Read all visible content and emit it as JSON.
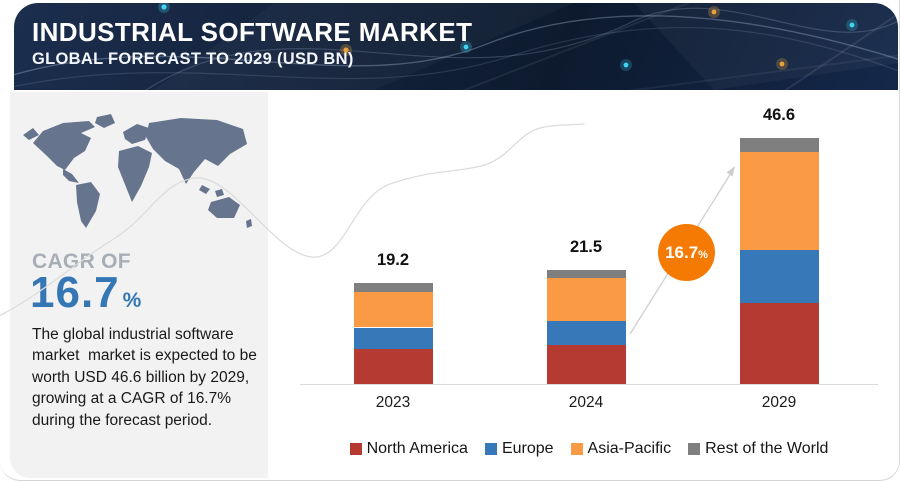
{
  "header": {
    "title": "INDUSTRIAL SOFTWARE MARKET",
    "subtitle": "GLOBAL FORECAST TO 2029 (USD BN)"
  },
  "sidebar": {
    "cagr_label": "CAGR OF",
    "cagr_value": "16.7",
    "cagr_unit": "%",
    "description": "The global industrial software market  market is expected to be worth USD 46.6 billion by 2029, growing at a CAGR of 16.7% during the forecast period."
  },
  "badge": {
    "value": "16.7",
    "unit": "%"
  },
  "chart_data": {
    "type": "bar",
    "stacked": true,
    "title": "Industrial Software Market, Global Forecast to 2029 (USD BN)",
    "categories": [
      "2023",
      "2024",
      "2029"
    ],
    "series": [
      {
        "name": "North America",
        "color": "#b53a31",
        "values": [
          6.6,
          7.3,
          15.4
        ]
      },
      {
        "name": "Europe",
        "color": "#3779b8",
        "values": [
          4.1,
          4.6,
          10.0
        ]
      },
      {
        "name": "Asia-Pacific",
        "color": "#fb9a45",
        "values": [
          6.8,
          8.1,
          18.6
        ]
      },
      {
        "name": "Rest of the World",
        "color": "#7f7f7f",
        "values": [
          1.7,
          1.5,
          2.6
        ]
      }
    ],
    "totals": [
      "19.2",
      "21.5",
      "46.6"
    ],
    "cagr_annotation": "16.7%",
    "legend_position": "bottom",
    "grid": false,
    "ylim": [
      0,
      50
    ]
  },
  "colors": {
    "accent_blue": "#3577b4",
    "badge_orange": "#f57a03",
    "header_navy": "#14233c",
    "sidebar_bg": "#f2f2f3",
    "map_fill": "#66758d",
    "axis_gray": "#dadada"
  }
}
